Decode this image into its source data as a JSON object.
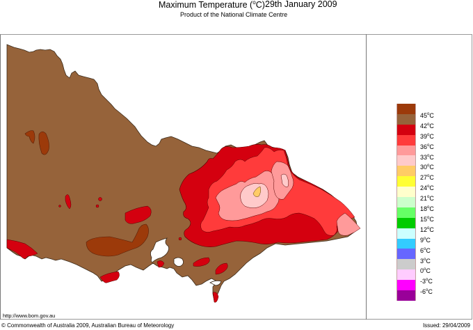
{
  "header": {
    "title": "Maximum Temperature (",
    "title_unit_sup": "o",
    "title_unit_tail": "C)",
    "date": "29th January 2009",
    "subtitle": "Product of the National Climate Centre"
  },
  "footer": {
    "url": "http://www.bom.gov.au",
    "copyright": "© Commonwealth of Australia 2009, Australian Bureau of Meteorology",
    "issued": "Issued: 29/04/2009"
  },
  "legend": {
    "bands": [
      {
        "color": "#9c3a0a",
        "label": "45"
      },
      {
        "color": "#96633a",
        "label": "42"
      },
      {
        "color": "#d4000f",
        "label": "39"
      },
      {
        "color": "#ff3b3b",
        "label": "36"
      },
      {
        "color": "#ff9a9a",
        "label": "33"
      },
      {
        "color": "#ffcaca",
        "label": "30"
      },
      {
        "color": "#ffcc66",
        "label": "27"
      },
      {
        "color": "#ffff33",
        "label": "24"
      },
      {
        "color": "#ffffcc",
        "label": "21"
      },
      {
        "color": "#ccffcc",
        "label": "18"
      },
      {
        "color": "#66ff66",
        "label": "15"
      },
      {
        "color": "#00cc00",
        "label": "12"
      },
      {
        "color": "#ccffff",
        "label": "9"
      },
      {
        "color": "#33ccff",
        "label": "6"
      },
      {
        "color": "#6666ff",
        "label": "3"
      },
      {
        "color": "#cccccc",
        "label": "0"
      },
      {
        "color": "#ffccff",
        "label": "-3"
      },
      {
        "color": "#ff00ff",
        "label": "-6"
      },
      {
        "color": "#990099",
        "label": ""
      }
    ],
    "unit": "°C"
  },
  "map": {
    "region": "Victoria, Australia",
    "colors": {
      "t42_45": "#96633a",
      "t45plus": "#9c3a0a",
      "t39_42": "#d4000f",
      "t36_39": "#ff3b3b",
      "t33_36": "#ff9a9a",
      "t30_33": "#ffcaca",
      "t27_30": "#ffcc66",
      "outline": "#3a2a1a"
    }
  }
}
